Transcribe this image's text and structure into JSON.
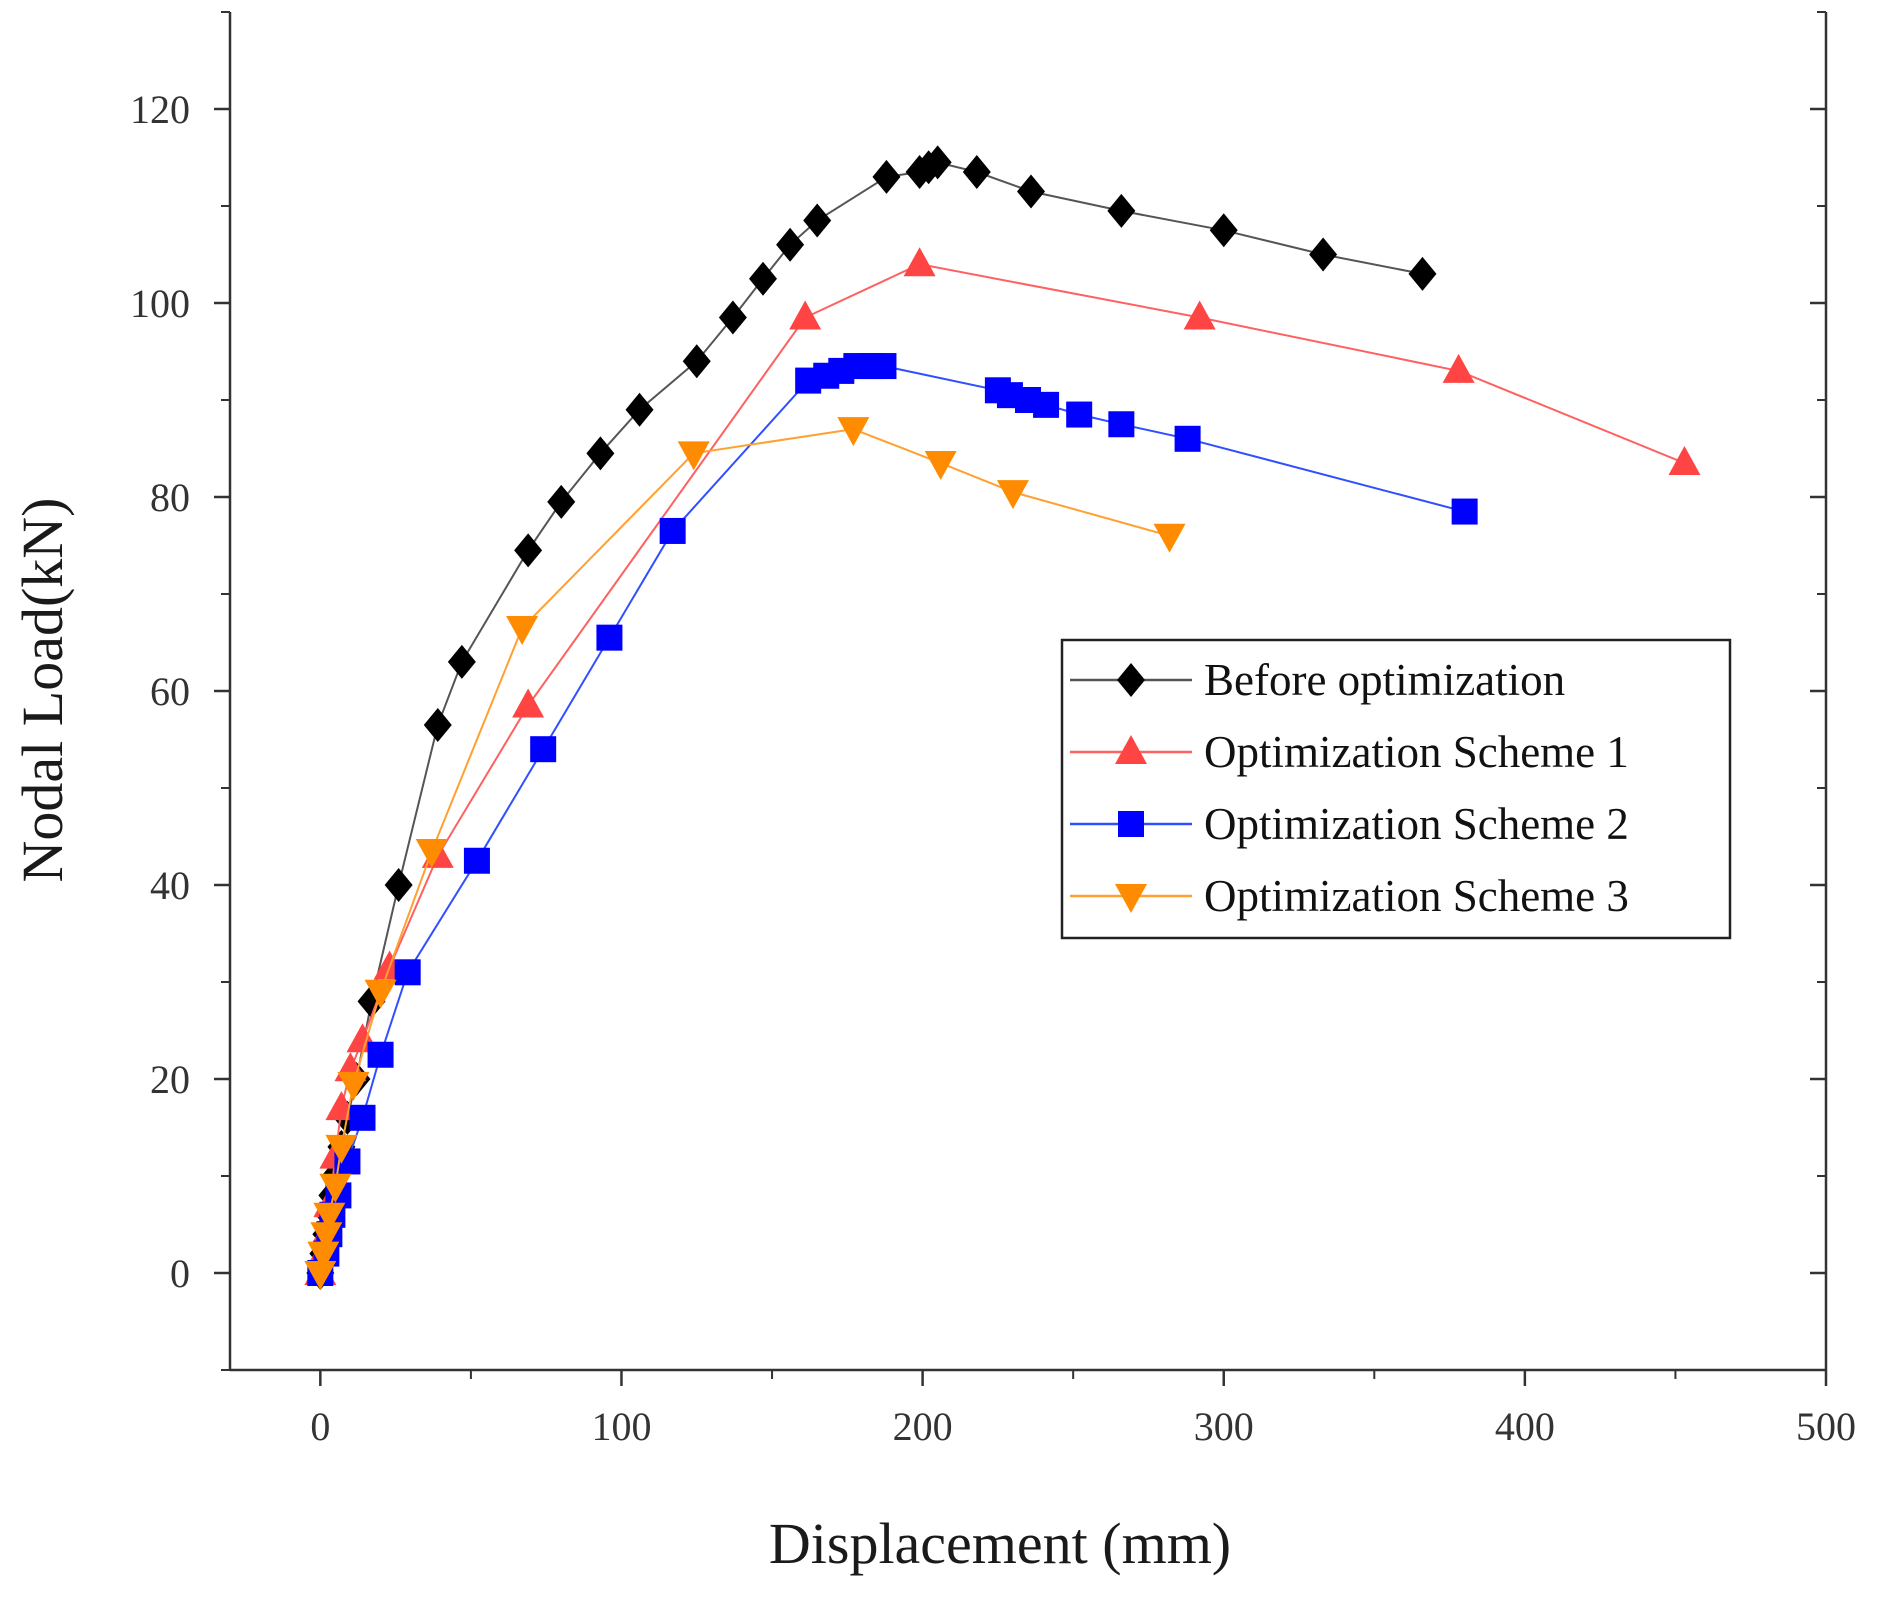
{
  "chart_data": {
    "type": "line",
    "title": "",
    "xlabel": "Displacement (mm)",
    "ylabel": "Nodal Load(kN)",
    "xlim": [
      -30,
      500
    ],
    "ylim": [
      -10,
      130
    ],
    "xticks": [
      0,
      100,
      200,
      300,
      400,
      500
    ],
    "yticks": [
      0,
      20,
      40,
      60,
      80,
      100,
      120
    ],
    "xtick_labels": [
      "0",
      "100",
      "200",
      "300",
      "400",
      "500"
    ],
    "ytick_labels": [
      "0",
      "20",
      "40",
      "60",
      "80",
      "100",
      "120"
    ],
    "grid": false,
    "legend_position": "center-right",
    "series": [
      {
        "name": "Before optimization",
        "color": "#000000",
        "line_color": "#555555",
        "marker": "diamond",
        "x": [
          0,
          1,
          2,
          3,
          4,
          5,
          7,
          9,
          12,
          17,
          26,
          39,
          47,
          69,
          80,
          93,
          106,
          125,
          137,
          147,
          156,
          165,
          188,
          199,
          202,
          205,
          218,
          236,
          266,
          300,
          333,
          366
        ],
        "y": [
          0,
          2,
          4,
          6,
          8,
          10,
          13,
          16,
          20,
          28,
          40,
          56.5,
          63,
          74.5,
          79.5,
          84.5,
          89,
          94,
          98.5,
          102.5,
          106,
          108.5,
          113,
          113.5,
          114,
          114.5,
          113.5,
          111.5,
          109.5,
          107.5,
          105,
          103
        ]
      },
      {
        "name": "Optimization Scheme 1",
        "color": "#ff4444",
        "line_color": "#ff6060",
        "marker": "triangle-up",
        "x": [
          0,
          1,
          2,
          3,
          5,
          7,
          10,
          14,
          23,
          39,
          69,
          161,
          199,
          292,
          378,
          453
        ],
        "y": [
          0,
          2,
          4,
          7,
          12,
          17,
          21,
          24,
          31.5,
          43,
          58.5,
          98.5,
          104,
          98.5,
          93,
          83.5
        ]
      },
      {
        "name": "Optimization Scheme 2",
        "color": "#0000ff",
        "line_color": "#3050ff",
        "marker": "square",
        "x": [
          0,
          2,
          3,
          4,
          6,
          9,
          14,
          20,
          29,
          52,
          74,
          96,
          117,
          162,
          168,
          173,
          178,
          183,
          187,
          225,
          229,
          235,
          241,
          252,
          266,
          288,
          380
        ],
        "y": [
          0,
          2,
          4,
          6,
          8,
          11.5,
          16,
          22.5,
          31,
          42.5,
          54,
          65.5,
          76.5,
          92,
          92.5,
          93,
          93.5,
          93.5,
          93.5,
          91,
          90.5,
          90,
          89.5,
          88.5,
          87.5,
          86,
          78.5
        ]
      },
      {
        "name": "Optimization Scheme 3",
        "color": "#ff8c00",
        "line_color": "#ffa030",
        "marker": "triangle-down",
        "x": [
          0,
          1,
          2,
          3,
          5,
          7,
          11,
          20,
          37,
          67,
          124,
          177,
          206,
          230,
          282
        ],
        "y": [
          0,
          2,
          4,
          6,
          9,
          13,
          19.5,
          29,
          43.5,
          66.5,
          84.5,
          87,
          83.5,
          80.5,
          76
        ]
      }
    ]
  }
}
